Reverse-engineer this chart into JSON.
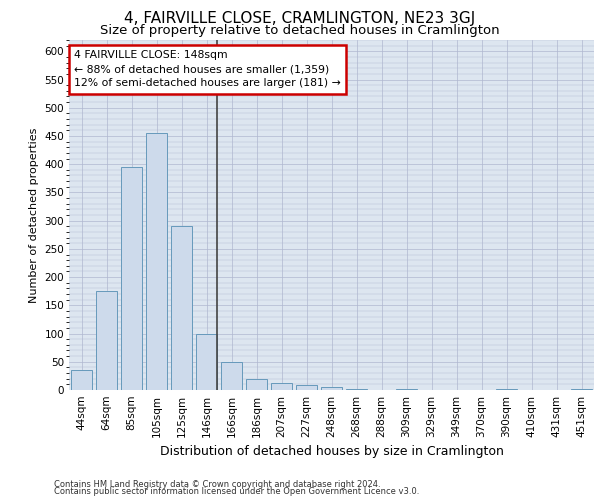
{
  "title1": "4, FAIRVILLE CLOSE, CRAMLINGTON, NE23 3GJ",
  "title2": "Size of property relative to detached houses in Cramlington",
  "xlabel": "Distribution of detached houses by size in Cramlington",
  "ylabel": "Number of detached properties",
  "footnote1": "Contains HM Land Registry data © Crown copyright and database right 2024.",
  "footnote2": "Contains public sector information licensed under the Open Government Licence v3.0.",
  "bar_labels": [
    "44sqm",
    "64sqm",
    "85sqm",
    "105sqm",
    "125sqm",
    "146sqm",
    "166sqm",
    "186sqm",
    "207sqm",
    "227sqm",
    "248sqm",
    "268sqm",
    "288sqm",
    "309sqm",
    "329sqm",
    "349sqm",
    "370sqm",
    "390sqm",
    "410sqm",
    "431sqm",
    "451sqm"
  ],
  "bar_values": [
    35,
    175,
    395,
    455,
    290,
    100,
    50,
    20,
    13,
    8,
    5,
    1,
    0,
    1,
    0,
    0,
    0,
    1,
    0,
    0,
    1
  ],
  "bar_color": "#cddaeb",
  "bar_edge_color": "#6699bb",
  "property_line_index": 5,
  "annotation_title": "4 FAIRVILLE CLOSE: 148sqm",
  "annotation_line1": "← 88% of detached houses are smaller (1,359)",
  "annotation_line2": "12% of semi-detached houses are larger (181) →",
  "annotation_box_facecolor": "#ffffff",
  "annotation_box_edgecolor": "#cc0000",
  "ylim": [
    0,
    620
  ],
  "yticks": [
    0,
    50,
    100,
    150,
    200,
    250,
    300,
    350,
    400,
    450,
    500,
    550,
    600
  ],
  "grid_color": "#b0b8d0",
  "bg_color": "#dde6f0",
  "title1_fontsize": 11,
  "title2_fontsize": 9.5,
  "ylabel_fontsize": 8,
  "xlabel_fontsize": 9,
  "tick_fontsize": 7.5,
  "footnote_fontsize": 6
}
